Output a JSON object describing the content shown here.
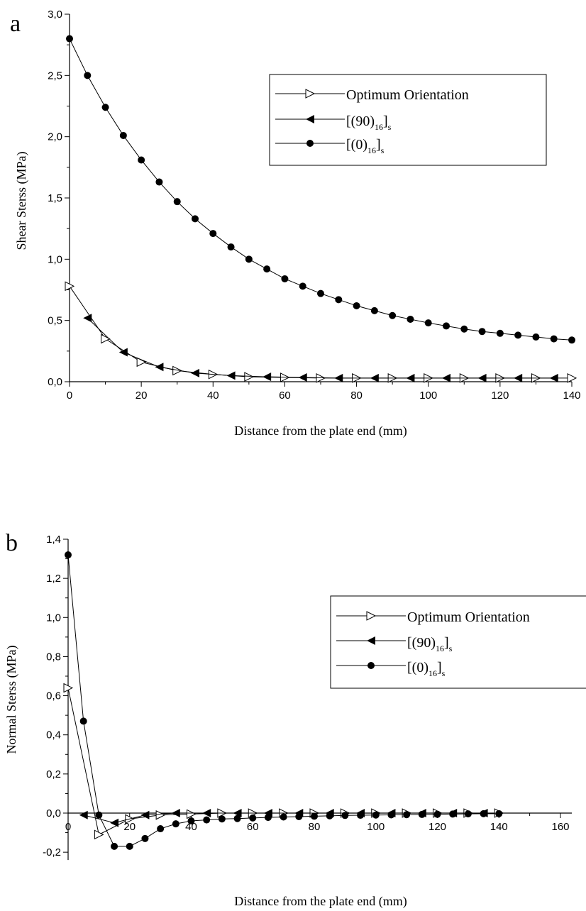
{
  "chart_data": [
    {
      "panel": "a",
      "type": "line",
      "xlabel": "Distance from the plate end (mm)",
      "ylabel": "Shear Sterss (MPa)",
      "xlim": [
        0,
        140
      ],
      "ylim": [
        0,
        3
      ],
      "xticks": [
        "0",
        "20",
        "40",
        "60",
        "80",
        "100",
        "120",
        "140"
      ],
      "yticks": [
        "0,0",
        "0,5",
        "1,0",
        "1,5",
        "2,0",
        "2,5",
        "3,0"
      ],
      "grid": false,
      "legend_position": "top-right",
      "series": [
        {
          "name": "Optimum Orientation",
          "marker": "triangle-right-open",
          "x": [
            0,
            10,
            20,
            30,
            40,
            50,
            60,
            70,
            80,
            90,
            100,
            110,
            120,
            130,
            140
          ],
          "y": [
            0.78,
            0.35,
            0.16,
            0.09,
            0.06,
            0.04,
            0.035,
            0.03,
            0.03,
            0.03,
            0.03,
            0.03,
            0.03,
            0.03,
            0.03
          ]
        },
        {
          "name_main": "[(90)",
          "name_sub": "16",
          "name_tail": "]",
          "name_sub2": "s",
          "marker": "triangle-left-filled",
          "x": [
            5,
            15,
            25,
            35,
            45,
            55,
            65,
            75,
            85,
            95,
            105,
            115,
            125,
            135
          ],
          "y": [
            0.52,
            0.24,
            0.12,
            0.07,
            0.05,
            0.04,
            0.035,
            0.03,
            0.03,
            0.03,
            0.03,
            0.03,
            0.03,
            0.03
          ]
        },
        {
          "name_main": "[(0)",
          "name_sub": "16",
          "name_tail": "]",
          "name_sub2": "s",
          "marker": "circle-filled",
          "x": [
            0,
            5,
            10,
            15,
            20,
            25,
            30,
            35,
            40,
            45,
            50,
            55,
            60,
            65,
            70,
            75,
            80,
            85,
            90,
            95,
            100,
            105,
            110,
            115,
            120,
            125,
            130,
            135,
            140
          ],
          "y": [
            2.8,
            2.5,
            2.24,
            2.01,
            1.81,
            1.63,
            1.47,
            1.33,
            1.21,
            1.1,
            1.0,
            0.92,
            0.84,
            0.78,
            0.72,
            0.67,
            0.62,
            0.58,
            0.54,
            0.51,
            0.48,
            0.455,
            0.43,
            0.41,
            0.395,
            0.38,
            0.365,
            0.35,
            0.34
          ]
        }
      ]
    },
    {
      "panel": "b",
      "type": "line",
      "xlabel": "Distance from the plate end (mm)",
      "ylabel": "Normal Sterss (MPa)",
      "xlim": [
        0,
        160
      ],
      "ylim": [
        -0.2,
        1.4
      ],
      "xticks": [
        "0",
        "20",
        "40",
        "60",
        "80",
        "100",
        "120",
        "140",
        "160"
      ],
      "yticks": [
        "-0,2",
        "0,0",
        "0,2",
        "0,4",
        "0,6",
        "0,8",
        "1,0",
        "1,2",
        "1,4"
      ],
      "grid": false,
      "legend_position": "top-right",
      "series": [
        {
          "name": "Optimum Orientation",
          "marker": "triangle-right-open",
          "x": [
            0,
            10,
            20,
            30,
            40,
            50,
            60,
            70,
            80,
            90,
            100,
            110,
            120,
            130,
            140
          ],
          "y": [
            0.64,
            -0.11,
            -0.03,
            -0.01,
            -0.005,
            0.0,
            0.0,
            0.0,
            0.0,
            0.0,
            0.0,
            0.0,
            0.0,
            0.0,
            0.0
          ]
        },
        {
          "name_main": "[(90)",
          "name_sub": "16",
          "name_tail": "]",
          "name_sub2": "s",
          "marker": "triangle-left-filled",
          "x": [
            5,
            15,
            25,
            35,
            45,
            55,
            65,
            75,
            85,
            95,
            105,
            115,
            125,
            135
          ],
          "y": [
            -0.01,
            -0.05,
            -0.01,
            0.0,
            0.0,
            0.0,
            0.0,
            0.0,
            0.0,
            0.0,
            0.0,
            0.0,
            0.0,
            0.0
          ]
        },
        {
          "name_main": "[(0)",
          "name_sub": "16",
          "name_tail": "]",
          "name_sub2": "s",
          "marker": "circle-filled",
          "x": [
            0,
            5,
            10,
            15,
            20,
            25,
            30,
            35,
            40,
            45,
            50,
            55,
            60,
            65,
            70,
            75,
            80,
            85,
            90,
            95,
            100,
            105,
            110,
            115,
            120,
            125,
            130,
            135,
            140
          ],
          "y": [
            1.32,
            0.47,
            -0.01,
            -0.17,
            -0.17,
            -0.13,
            -0.08,
            -0.055,
            -0.04,
            -0.035,
            -0.03,
            -0.028,
            -0.025,
            -0.022,
            -0.02,
            -0.018,
            -0.016,
            -0.014,
            -0.012,
            -0.011,
            -0.01,
            -0.009,
            -0.008,
            -0.007,
            -0.006,
            -0.005,
            -0.004,
            -0.003,
            -0.003
          ]
        }
      ]
    }
  ]
}
